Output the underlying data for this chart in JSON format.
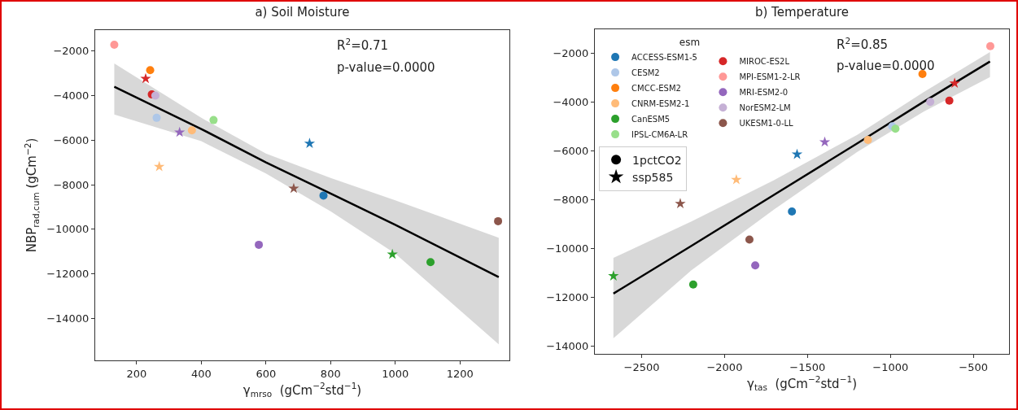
{
  "chart_data": [
    {
      "type": "scatter",
      "title": "a) Soil Moisture",
      "xlabel": "γ$_{mrso}$  (gCm$^{−2}$std$^{−1}$)",
      "ylabel": "NBP$_{rad,cum}$ (gCm$^{−2}$)",
      "xlim": [
        72,
        1353
      ],
      "ylim": [
        -15890,
        -1060
      ],
      "xticks": [
        200,
        400,
        600,
        800,
        1000,
        1200
      ],
      "yticks": [
        -14000,
        -12000,
        -10000,
        -8000,
        -6000,
        -4000,
        -2000
      ],
      "grid": false,
      "legend": false,
      "annotations": [
        "R$^{2}$=0.71",
        "p-value=0.0000"
      ],
      "series": [
        {
          "type": "line",
          "color": "#000000",
          "line_style": "solid",
          "marker": "none",
          "x": [
            131,
            400,
            600,
            800,
            1000,
            1320
          ],
          "values": [
            -3600,
            -5500,
            -7000,
            -8400,
            -9800,
            -12150
          ],
          "lower": [
            -4850,
            -6050,
            -7500,
            -9200,
            -11100,
            -15170
          ],
          "upper": [
            -2560,
            -5000,
            -6600,
            -7700,
            -8700,
            -10380
          ]
        },
        {
          "color": "#1f77b4",
          "marker": "circle",
          "x": [
            778
          ],
          "values": [
            -8490
          ]
        },
        {
          "color": "#1f77b4",
          "marker": "star",
          "x": [
            735
          ],
          "values": [
            -6150
          ]
        },
        {
          "color": "#aec7e8",
          "marker": "circle",
          "x": [
            262
          ],
          "values": [
            -5000
          ]
        },
        {
          "color": "#ff7f0e",
          "marker": "circle",
          "x": [
            242
          ],
          "values": [
            -2860
          ]
        },
        {
          "color": "#ffbb78",
          "marker": "circle",
          "x": [
            371
          ],
          "values": [
            -5560
          ]
        },
        {
          "color": "#ffbb78",
          "marker": "star",
          "x": [
            270
          ],
          "values": [
            -7190
          ]
        },
        {
          "color": "#2ca02c",
          "marker": "circle",
          "x": [
            1109
          ],
          "values": [
            -11480
          ]
        },
        {
          "color": "#2ca02c",
          "marker": "star",
          "x": [
            991
          ],
          "values": [
            -11130
          ]
        },
        {
          "color": "#98df8a",
          "marker": "circle",
          "x": [
            438
          ],
          "values": [
            -5100
          ]
        },
        {
          "color": "#d62728",
          "marker": "circle",
          "x": [
            247
          ],
          "values": [
            -3950
          ]
        },
        {
          "color": "#d62728",
          "marker": "star",
          "x": [
            228
          ],
          "values": [
            -3240
          ]
        },
        {
          "color": "#ff9896",
          "marker": "circle",
          "x": [
            131
          ],
          "values": [
            -1720
          ]
        },
        {
          "color": "#9467bd",
          "marker": "circle",
          "x": [
            578
          ],
          "values": [
            -10700
          ]
        },
        {
          "color": "#9467bd",
          "marker": "star",
          "x": [
            333
          ],
          "values": [
            -5650
          ]
        },
        {
          "color": "#c5b0d5",
          "marker": "circle",
          "x": [
            258
          ],
          "values": [
            -4000
          ]
        },
        {
          "color": "#8c564b",
          "marker": "circle",
          "x": [
            1318
          ],
          "values": [
            -9640
          ]
        },
        {
          "color": "#8c564b",
          "marker": "star",
          "x": [
            686
          ],
          "values": [
            -8170
          ]
        }
      ]
    },
    {
      "type": "scatter",
      "title": "b) Temperature",
      "xlabel": "γ$_{tas}$  (gCm$^{−2}$std$^{−1}$)",
      "xlim": [
        -2782,
        -285
      ],
      "ylim": [
        -14320,
        -1030
      ],
      "xticks": [
        -2500,
        -2000,
        -1500,
        -1000,
        -500
      ],
      "yticks": [
        -14000,
        -12000,
        -10000,
        -8000,
        -6000,
        -4000,
        -2000
      ],
      "grid": false,
      "legend": "top left",
      "legend_title": "esm",
      "annotations": [
        "R$^{2}$=0.85",
        "p-value=0.0000"
      ],
      "series": [
        {
          "type": "line",
          "color": "#000000",
          "line_style": "solid",
          "marker": "none",
          "x": [
            -2670,
            -2200,
            -1700,
            -1200,
            -800,
            -400
          ],
          "values": [
            -11850,
            -9900,
            -7800,
            -5700,
            -4000,
            -2350
          ],
          "lower": [
            -13680,
            -10900,
            -8400,
            -6050,
            -4400,
            -2990
          ],
          "upper": [
            -10390,
            -8900,
            -7200,
            -5350,
            -3600,
            -1960
          ]
        },
        {
          "name": "ACCESS-ESM1-5",
          "color": "#1f77b4",
          "marker": "circle",
          "x": [
            -1594
          ],
          "values": [
            -8490
          ]
        },
        {
          "color": "#1f77b4",
          "marker": "star",
          "x": [
            -1563
          ],
          "values": [
            -6150
          ]
        },
        {
          "name": "CESM2",
          "color": "#aec7e8",
          "marker": "circle",
          "x": [
            -989
          ],
          "values": [
            -5000
          ]
        },
        {
          "name": "CMCC-ESM2",
          "color": "#ff7f0e",
          "marker": "circle",
          "x": [
            -807
          ],
          "values": [
            -2860
          ]
        },
        {
          "name": "CNRM-ESM2-1",
          "color": "#ffbb78",
          "marker": "circle",
          "x": [
            -1136
          ],
          "values": [
            -5560
          ]
        },
        {
          "color": "#ffbb78",
          "marker": "star",
          "x": [
            -1929
          ],
          "values": [
            -7190
          ]
        },
        {
          "name": "CanESM5",
          "color": "#2ca02c",
          "marker": "circle",
          "x": [
            -2189
          ],
          "values": [
            -11480
          ]
        },
        {
          "color": "#2ca02c",
          "marker": "star",
          "x": [
            -2670
          ],
          "values": [
            -11130
          ]
        },
        {
          "name": "IPSL-CM6A-LR",
          "color": "#98df8a",
          "marker": "circle",
          "x": [
            -970
          ],
          "values": [
            -5100
          ]
        },
        {
          "name": "MIROC-ES2L",
          "color": "#d62728",
          "marker": "circle",
          "x": [
            -645
          ],
          "values": [
            -3950
          ]
        },
        {
          "color": "#d62728",
          "marker": "star",
          "x": [
            -613
          ],
          "values": [
            -3240
          ]
        },
        {
          "name": "MPI-ESM1-2-LR",
          "color": "#ff9896",
          "marker": "circle",
          "x": [
            -398
          ],
          "values": [
            -1720
          ]
        },
        {
          "name": "MRI-ESM2-0",
          "color": "#9467bd",
          "marker": "circle",
          "x": [
            -1815
          ],
          "values": [
            -10700
          ]
        },
        {
          "color": "#9467bd",
          "marker": "star",
          "x": [
            -1396
          ],
          "values": [
            -5650
          ]
        },
        {
          "name": "NorESM2-LM",
          "color": "#c5b0d5",
          "marker": "circle",
          "x": [
            -760
          ],
          "values": [
            -4000
          ]
        },
        {
          "name": "UKESM1-0-LL",
          "color": "#8c564b",
          "marker": "circle",
          "x": [
            -1850
          ],
          "values": [
            -9640
          ]
        },
        {
          "color": "#8c564b",
          "marker": "star",
          "x": [
            -2267
          ],
          "values": [
            -8170
          ]
        },
        {
          "name": "1pctCO2",
          "color": "#000000",
          "marker": "circle"
        },
        {
          "name": "ssp585",
          "color": "#000000",
          "marker": "star"
        }
      ]
    }
  ]
}
